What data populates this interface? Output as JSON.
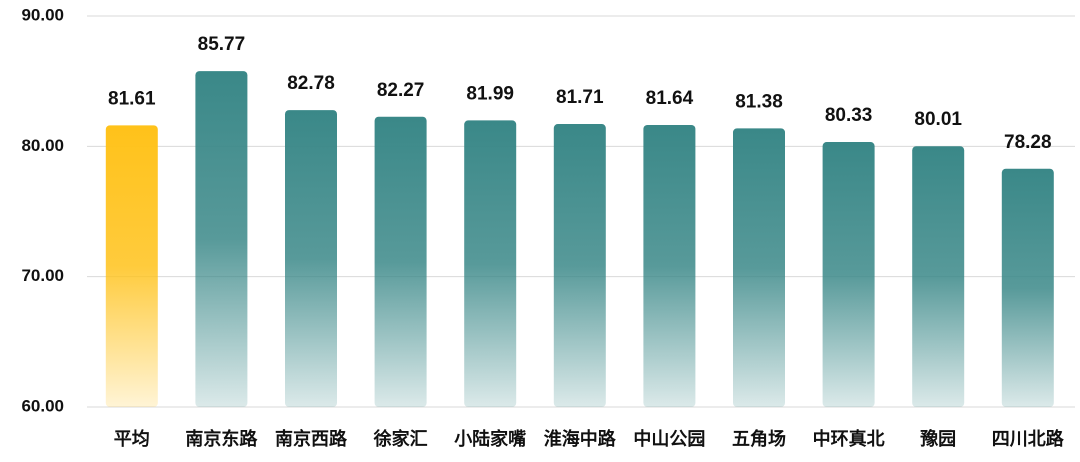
{
  "chart_data": {
    "type": "bar",
    "categories": [
      "平均",
      "南京东路",
      "南京西路",
      "徐家汇",
      "小陆家嘴",
      "淮海中路",
      "中山公园",
      "五角场",
      "中环真北",
      "豫园",
      "四川北路"
    ],
    "values": [
      81.61,
      85.77,
      82.78,
      82.27,
      81.99,
      81.71,
      81.64,
      81.38,
      80.33,
      80.01,
      78.28
    ],
    "colors": [
      "#ffc21a",
      "#3a8888",
      "#3a8888",
      "#3a8888",
      "#3a8888",
      "#3a8888",
      "#3a8888",
      "#3a8888",
      "#3a8888",
      "#3a8888",
      "#3a8888"
    ],
    "ylim": [
      60,
      90
    ],
    "yticks": [
      {
        "value": 60,
        "label": "60.00"
      },
      {
        "value": 70,
        "label": "70.00"
      },
      {
        "value": 80,
        "label": "80.00"
      },
      {
        "value": 90,
        "label": "90.00"
      }
    ],
    "grid": true
  }
}
